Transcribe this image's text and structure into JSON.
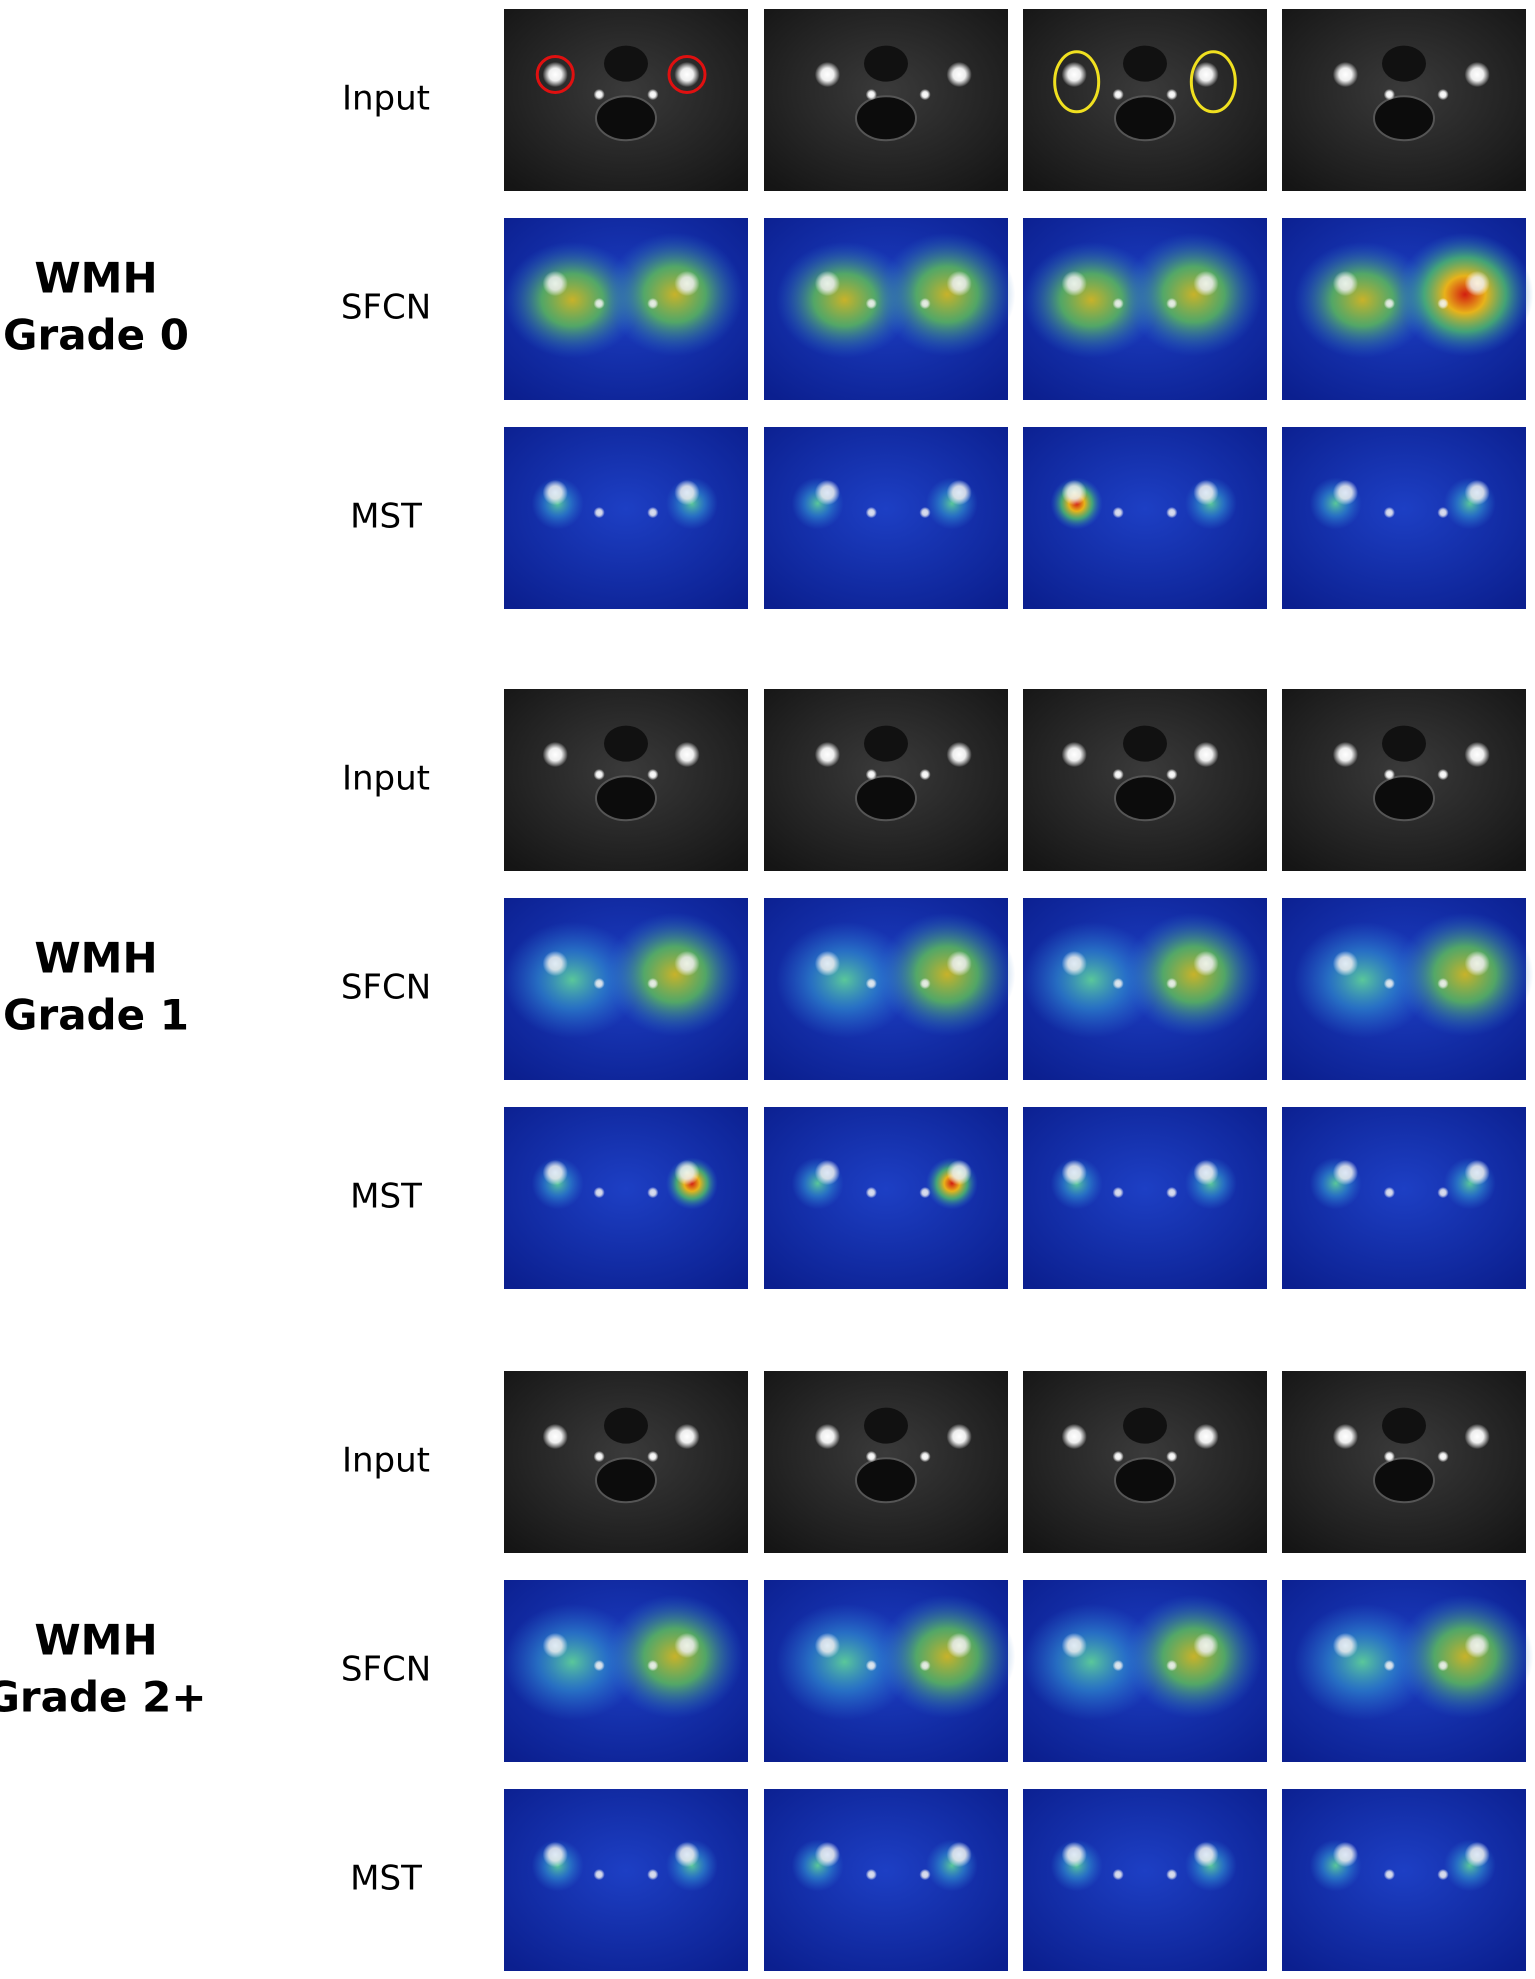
{
  "groups": [
    {
      "title": [
        "WMH",
        "Grade 0"
      ],
      "rows": [
        "Input",
        "SFCN",
        "MST"
      ]
    },
    {
      "title": [
        "WMH",
        "Grade 1"
      ],
      "rows": [
        "Input",
        "SFCN",
        "MST"
      ]
    },
    {
      "title": [
        "WMH",
        "Grade 2+"
      ],
      "rows": [
        "Input",
        "SFCN",
        "MST"
      ]
    }
  ]
}
